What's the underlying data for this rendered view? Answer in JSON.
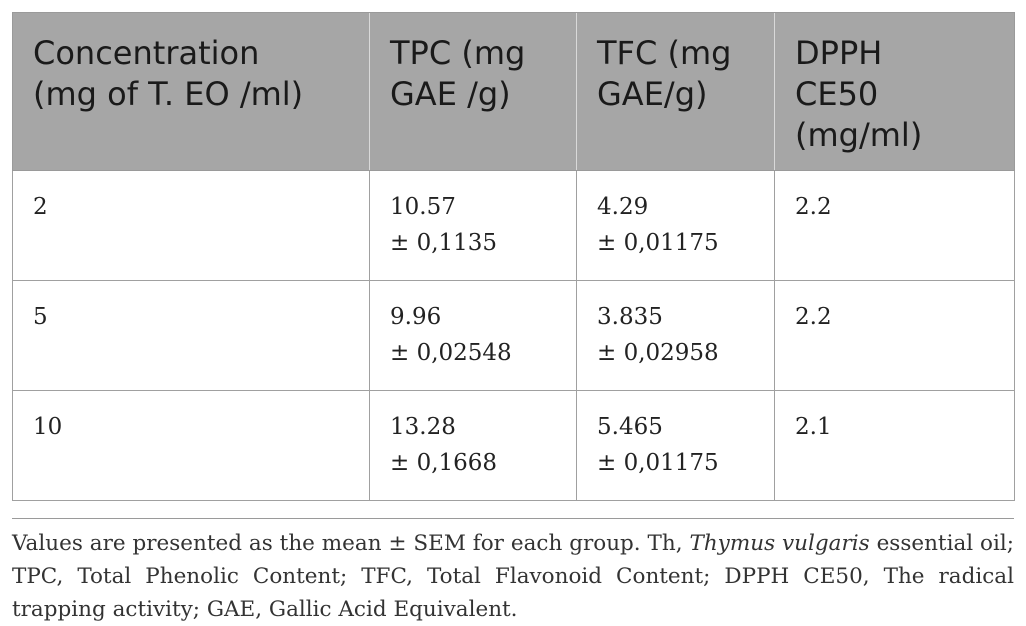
{
  "table": {
    "headers": [
      "Concentration\n(mg of T. EO /ml)",
      "TPC (mg\nGAE /g)",
      "TFC (mg\nGAE/g)",
      "DPPH\nCE50\n(mg/ml)"
    ],
    "rows": [
      {
        "concentration": "2",
        "tpc_mean": "10.57",
        "tpc_sem": "± 0,1135",
        "tfc_mean": "4.29",
        "tfc_sem": "± 0,01175",
        "dpph": "2.2"
      },
      {
        "concentration": "5",
        "tpc_mean": "9.96",
        "tpc_sem": "± 0,02548",
        "tfc_mean": "3.835",
        "tfc_sem": "± 0,02958",
        "dpph": "2.2"
      },
      {
        "concentration": "10",
        "tpc_mean": "13.28",
        "tpc_sem": "± 0,1668",
        "tfc_mean": "5.465",
        "tfc_sem": "± 0,01175",
        "dpph": "2.1"
      }
    ]
  },
  "footnote": {
    "part1": "Values are presented as the mean ± SEM for each group. Th, ",
    "italic": "Thymus vulgaris",
    "part2": " essential oil; TPC, Total Phenolic Content; TFC, Total Flavonoid Content; DPPH CE50, The radical trapping activity; GAE, Gallic Acid Equivalent."
  }
}
